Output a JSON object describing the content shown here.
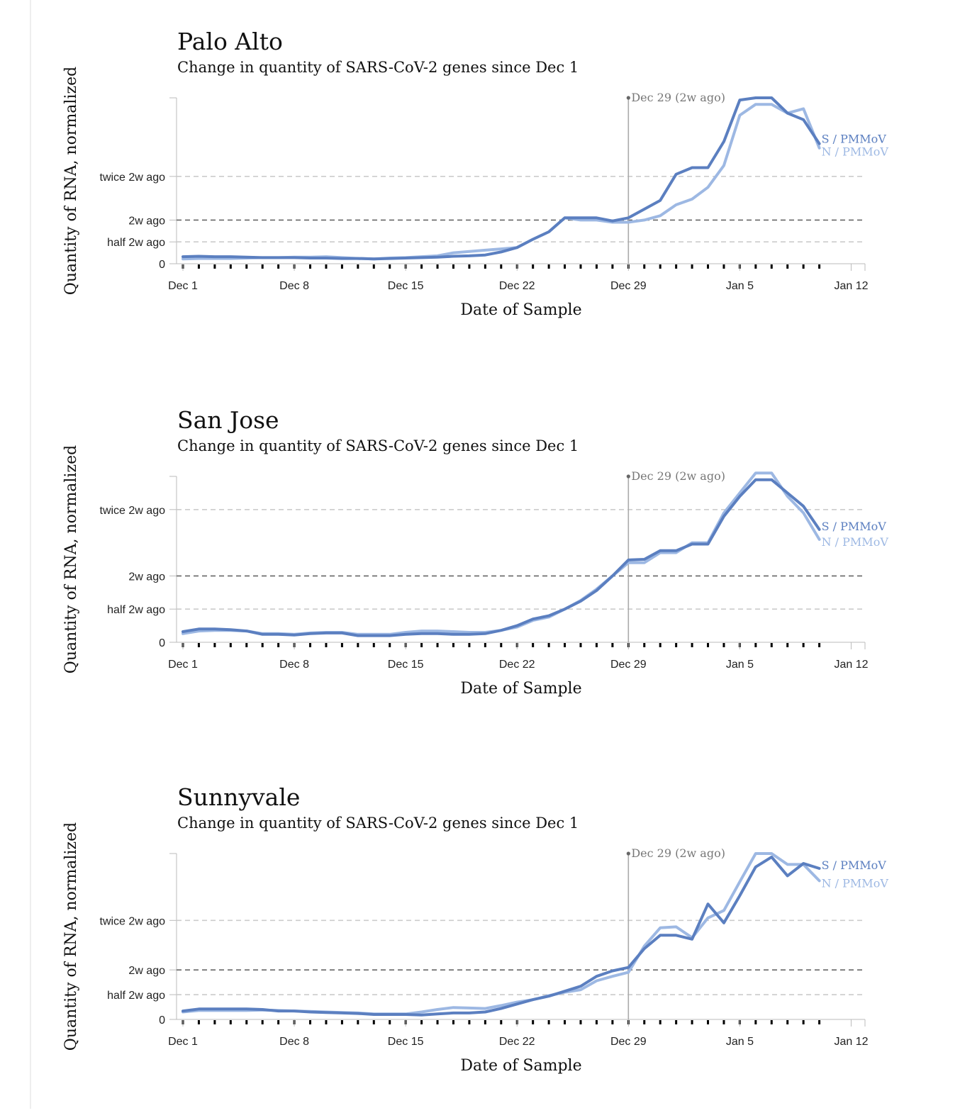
{
  "charts": [
    {
      "type": "line",
      "title": "Palo Alto",
      "subtitle": "Change in quantity of SARS-CoV-2 genes since Dec 1",
      "xlabel": "Date of Sample",
      "ylabel": "Quantity of RNA, normalized",
      "x_ticks": [
        "Dec 1",
        "Dec 8",
        "Dec 15",
        "Dec 22",
        "Dec 29",
        "Jan 5",
        "Jan 12"
      ],
      "y_ticks": [
        {
          "label": "twice 2w ago",
          "value": 2.0,
          "style": "light"
        },
        {
          "label": "2w ago",
          "value": 1.0,
          "style": "dark"
        },
        {
          "label": "half 2w ago",
          "value": 0.5,
          "style": "light"
        },
        {
          "label": "0",
          "value": 0,
          "style": "none"
        }
      ],
      "ylim": [
        0,
        3.8
      ],
      "xlim_days": [
        0,
        43
      ],
      "annotation": "Dec 29 (2w ago)",
      "annotation_day": 28,
      "series": [
        {
          "name": "S / PMMoV",
          "color": "#5b7fc0",
          "values": [
            0.16,
            0.17,
            0.16,
            0.16,
            0.15,
            0.14,
            0.14,
            0.14,
            0.13,
            0.13,
            0.12,
            0.12,
            0.11,
            0.12,
            0.13,
            0.14,
            0.15,
            0.17,
            0.18,
            0.2,
            0.27,
            0.37,
            0.56,
            0.73,
            1.05,
            1.05,
            1.05,
            0.98,
            1.05,
            1.25,
            1.45,
            2.05,
            2.2,
            2.2,
            2.8,
            3.75,
            3.8,
            3.8,
            3.45,
            3.3,
            2.75
          ]
        },
        {
          "name": "N / PMMoV",
          "color": "#9db8e3",
          "values": [
            0.11,
            0.12,
            0.12,
            0.12,
            0.13,
            0.14,
            0.14,
            0.15,
            0.15,
            0.16,
            0.14,
            0.12,
            0.11,
            0.13,
            0.14,
            0.16,
            0.18,
            0.25,
            0.28,
            0.31,
            0.34,
            0.37,
            0.56,
            0.73,
            1.05,
            1.0,
            1.0,
            0.95,
            0.95,
            1.0,
            1.1,
            1.35,
            1.48,
            1.75,
            2.25,
            3.4,
            3.65,
            3.65,
            3.45,
            3.55,
            2.65
          ]
        }
      ]
    },
    {
      "type": "line",
      "title": "San Jose",
      "subtitle": "Change in quantity of SARS-CoV-2 genes since Dec 1",
      "xlabel": "Date of Sample",
      "ylabel": "Quantity of RNA, normalized",
      "x_ticks": [
        "Dec 1",
        "Dec 8",
        "Dec 15",
        "Dec 22",
        "Dec 29",
        "Jan 5",
        "Jan 12"
      ],
      "y_ticks": [
        {
          "label": "twice 2w ago",
          "value": 2.0,
          "style": "light"
        },
        {
          "label": "2w ago",
          "value": 1.0,
          "style": "dark"
        },
        {
          "label": "half 2w ago",
          "value": 0.5,
          "style": "light"
        },
        {
          "label": "0",
          "value": 0,
          "style": "none"
        }
      ],
      "ylim": [
        0,
        2.5
      ],
      "xlim_days": [
        0,
        43
      ],
      "annotation": "Dec 29 (2w ago)",
      "annotation_day": 28,
      "series": [
        {
          "name": "S / PMMoV",
          "color": "#5b7fc0",
          "values": [
            0.16,
            0.2,
            0.2,
            0.19,
            0.17,
            0.12,
            0.12,
            0.11,
            0.13,
            0.14,
            0.14,
            0.1,
            0.1,
            0.1,
            0.12,
            0.13,
            0.13,
            0.12,
            0.12,
            0.13,
            0.18,
            0.25,
            0.35,
            0.4,
            0.5,
            0.62,
            0.78,
            1.0,
            1.24,
            1.25,
            1.38,
            1.38,
            1.48,
            1.48,
            1.9,
            2.2,
            2.45,
            2.45,
            2.25,
            2.05,
            1.7
          ]
        },
        {
          "name": "N / PMMoV",
          "color": "#9db8e3",
          "values": [
            0.13,
            0.17,
            0.18,
            0.18,
            0.17,
            0.13,
            0.13,
            0.12,
            0.14,
            0.15,
            0.15,
            0.12,
            0.12,
            0.12,
            0.15,
            0.17,
            0.17,
            0.16,
            0.15,
            0.15,
            0.18,
            0.23,
            0.33,
            0.38,
            0.5,
            0.63,
            0.8,
            1.0,
            1.2,
            1.2,
            1.35,
            1.35,
            1.5,
            1.5,
            1.95,
            2.25,
            2.55,
            2.55,
            2.2,
            1.95,
            1.55
          ]
        }
      ]
    },
    {
      "type": "line",
      "title": "Sunnyvale",
      "subtitle": "Change in quantity of SARS-CoV-2 genes since Dec 1",
      "xlabel": "Date of Sample",
      "ylabel": "Quantity of RNA, normalized",
      "x_ticks": [
        "Dec 1",
        "Dec 8",
        "Dec 15",
        "Dec 22",
        "Dec 29",
        "Jan 5",
        "Jan 12"
      ],
      "y_ticks": [
        {
          "label": "twice 2w ago",
          "value": 2.0,
          "style": "light"
        },
        {
          "label": "2w ago",
          "value": 1.0,
          "style": "dark"
        },
        {
          "label": "half 2w ago",
          "value": 0.5,
          "style": "light"
        },
        {
          "label": "0",
          "value": 0,
          "style": "none"
        }
      ],
      "ylim": [
        0,
        3.35
      ],
      "xlim_days": [
        0,
        43
      ],
      "annotation": "Dec 29 (2w ago)",
      "annotation_day": 28,
      "series": [
        {
          "name": "S / PMMoV",
          "color": "#5b7fc0",
          "values": [
            0.17,
            0.21,
            0.21,
            0.21,
            0.21,
            0.2,
            0.17,
            0.17,
            0.15,
            0.14,
            0.13,
            0.12,
            0.1,
            0.1,
            0.1,
            0.09,
            0.11,
            0.13,
            0.13,
            0.15,
            0.22,
            0.31,
            0.4,
            0.47,
            0.57,
            0.67,
            0.87,
            0.98,
            1.05,
            1.43,
            1.7,
            1.7,
            1.62,
            2.33,
            1.95,
            2.5,
            3.08,
            3.28,
            2.9,
            3.15,
            3.05
          ]
        },
        {
          "name": "N / PMMoV",
          "color": "#9db8e3",
          "values": [
            0.15,
            0.18,
            0.18,
            0.18,
            0.18,
            0.19,
            0.18,
            0.17,
            0.16,
            0.15,
            0.14,
            0.13,
            0.11,
            0.11,
            0.11,
            0.15,
            0.2,
            0.24,
            0.23,
            0.22,
            0.28,
            0.35,
            0.4,
            0.48,
            0.55,
            0.6,
            0.78,
            0.87,
            0.95,
            1.48,
            1.85,
            1.87,
            1.65,
            2.05,
            2.2,
            2.78,
            3.35,
            3.35,
            3.13,
            3.13,
            2.8
          ]
        }
      ]
    }
  ]
}
